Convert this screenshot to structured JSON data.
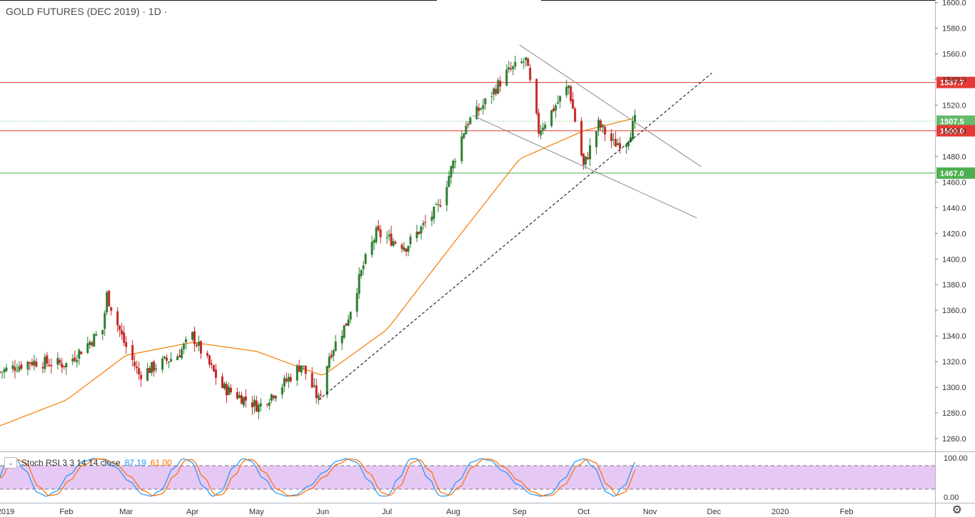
{
  "title": "GOLD FUTURES (DEC 2019) · 1D ·",
  "colors": {
    "up": "#26a69a",
    "upBody": "#2e7d32",
    "down": "#c62828",
    "ma": "#f57c00",
    "red_line": "#e53935",
    "green_line": "#4caf50",
    "stoch_k": "#2196F3",
    "stoch_d": "#FF6D00",
    "stoch_band": "#e6c8f5"
  },
  "axis": {
    "y_ticks": [
      "1600.0",
      "1580.0",
      "1560.0",
      "1540.0",
      "1520.0",
      "1500.0",
      "1480.0",
      "1460.0",
      "1440.0",
      "1420.0",
      "1400.0",
      "1380.0",
      "1360.0",
      "1340.0",
      "1320.0",
      "1300.0",
      "1280.0",
      "1260.0"
    ],
    "x_ticks": [
      "2019",
      "Feb",
      "Mar",
      "Apr",
      "May",
      "Jun",
      "Jul",
      "Aug",
      "Sep",
      "Oct",
      "Nov",
      "Dec",
      "2020",
      "Feb"
    ],
    "stoch_ticks": [
      "100.00",
      "0.00"
    ]
  },
  "levels": [
    {
      "label": "1537.7",
      "value": 1537.7,
      "color": "#e53935"
    },
    {
      "label": "1507.5",
      "value": 1507.5,
      "color": "#66bb6a"
    },
    {
      "label": "1500.0",
      "value": 1500.0,
      "color": "#e53935"
    },
    {
      "label": "1467.0",
      "value": 1467.0,
      "color": "#4caf50"
    }
  ],
  "indicator": {
    "name": "Stoch RSI 3 3 14 14 close",
    "k": "87.19",
    "d": "61.00"
  },
  "chart_data": {
    "type": "candlestick",
    "ylim": [
      1250,
      1602
    ],
    "stoch_ylim": [
      0,
      100
    ],
    "stoch_bands": [
      80,
      20
    ],
    "anchors": [
      {
        "x": "2019-01-01",
        "y": 1312
      },
      {
        "x": "2019-01-15",
        "y": 1320
      },
      {
        "x": "2019-02-01",
        "y": 1318
      },
      {
        "x": "2019-02-18",
        "y": 1345
      },
      {
        "x": "2019-02-20",
        "y": 1372
      },
      {
        "x": "2019-02-28",
        "y": 1335
      },
      {
        "x": "2019-03-07",
        "y": 1310
      },
      {
        "x": "2019-03-25",
        "y": 1325
      },
      {
        "x": "2019-04-01",
        "y": 1340
      },
      {
        "x": "2019-04-15",
        "y": 1300
      },
      {
        "x": "2019-05-02",
        "y": 1285
      },
      {
        "x": "2019-05-15",
        "y": 1305
      },
      {
        "x": "2019-05-22",
        "y": 1318
      },
      {
        "x": "2019-05-30",
        "y": 1290
      },
      {
        "x": "2019-06-04",
        "y": 1325
      },
      {
        "x": "2019-06-12",
        "y": 1350
      },
      {
        "x": "2019-06-20",
        "y": 1395
      },
      {
        "x": "2019-06-26",
        "y": 1420
      },
      {
        "x": "2019-07-10",
        "y": 1410
      },
      {
        "x": "2019-07-25",
        "y": 1440
      },
      {
        "x": "2019-08-07",
        "y": 1505
      },
      {
        "x": "2019-08-15",
        "y": 1520
      },
      {
        "x": "2019-08-26",
        "y": 1545
      },
      {
        "x": "2019-09-04",
        "y": 1555
      },
      {
        "x": "2019-09-10",
        "y": 1500
      },
      {
        "x": "2019-09-24",
        "y": 1535
      },
      {
        "x": "2019-10-01",
        "y": 1472
      },
      {
        "x": "2019-10-08",
        "y": 1505
      },
      {
        "x": "2019-10-15",
        "y": 1490
      },
      {
        "x": "2019-10-21",
        "y": 1492
      },
      {
        "x": "2019-10-25",
        "y": 1507.5
      }
    ],
    "ma_anchors": [
      {
        "x": "2019-01-01",
        "y": 1270
      },
      {
        "x": "2019-02-01",
        "y": 1290
      },
      {
        "x": "2019-03-01",
        "y": 1325
      },
      {
        "x": "2019-04-01",
        "y": 1335
      },
      {
        "x": "2019-05-01",
        "y": 1328
      },
      {
        "x": "2019-06-01",
        "y": 1309
      },
      {
        "x": "2019-07-01",
        "y": 1345
      },
      {
        "x": "2019-08-01",
        "y": 1412
      },
      {
        "x": "2019-09-01",
        "y": 1478
      },
      {
        "x": "2019-10-01",
        "y": 1500
      },
      {
        "x": "2019-10-25",
        "y": 1510
      }
    ],
    "trendlines": [
      {
        "style": "dashed",
        "from": {
          "x": "2019-05-30",
          "y": 1290
        },
        "to": {
          "x": "2019-11-30",
          "y": 1545
        }
      },
      {
        "style": "solid",
        "from": {
          "x": "2019-09-01",
          "y": 1567
        },
        "to": {
          "x": "2019-11-25",
          "y": 1472
        }
      },
      {
        "style": "solid",
        "from": {
          "x": "2019-08-10",
          "y": 1512
        },
        "to": {
          "x": "2019-11-23",
          "y": 1432
        }
      }
    ]
  }
}
